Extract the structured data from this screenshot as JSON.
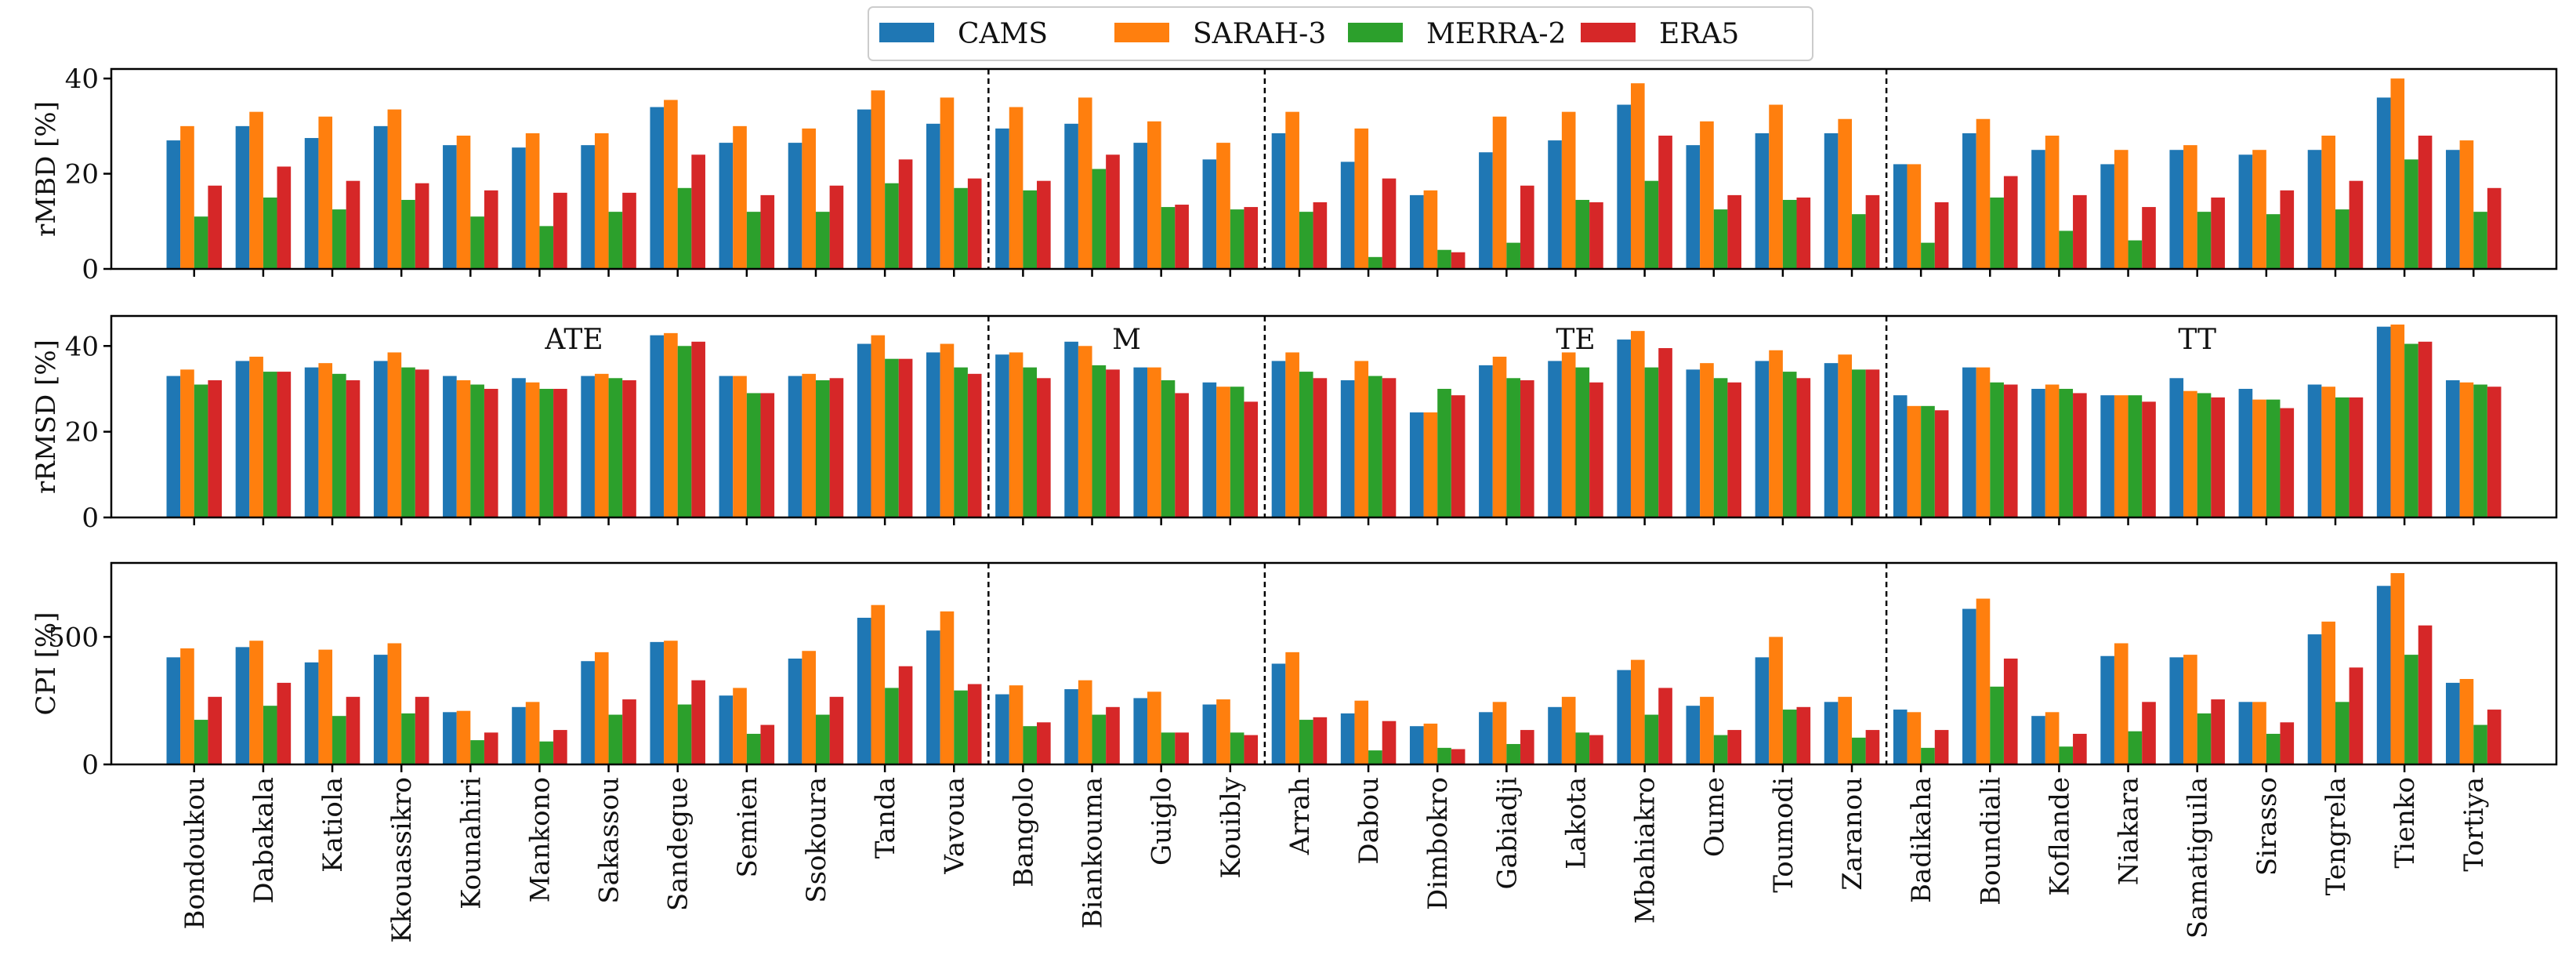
{
  "chart_data": {
    "type": "bar",
    "legend": {
      "position": "top-center",
      "entries": [
        "CAMS",
        "SARAH-3",
        "MERRA-2",
        "ERA5"
      ]
    },
    "colors": {
      "CAMS": "#1f77b4",
      "SARAH-3": "#ff7f0e",
      "MERRA-2": "#2ca02c",
      "ERA5": "#d62728"
    },
    "categories": [
      "Bondoukou",
      "Dabakala",
      "Katiola",
      "Kkouassikro",
      "Kounahiri",
      "Mankono",
      "Sakassou",
      "Sandegue",
      "Semien",
      "Ssokoura",
      "Tanda",
      "Vavoua",
      "Bangolo",
      "Biankouma",
      "Guiglo",
      "Kouibly",
      "Arrah",
      "Dabou",
      "Dimbokro",
      "Gabiadji",
      "Lakota",
      "Mbahiakro",
      "Oume",
      "Toumodi",
      "Zaranou",
      "Badikaha",
      "Boundiali",
      "Koflande",
      "Niakara",
      "Samatiguila",
      "Sirasso",
      "Tengrela",
      "Tienko",
      "Tortiya"
    ],
    "group_separators_after_index": [
      11,
      15,
      24
    ],
    "group_labels": [
      "ATE",
      "M",
      "TE",
      "TT"
    ],
    "panels": [
      {
        "ylabel": "rMBD [%]",
        "ylim": [
          0,
          42
        ],
        "yticks": [
          0,
          20,
          40
        ],
        "series": [
          {
            "name": "CAMS",
            "values": [
              27,
              30,
              27.5,
              30,
              26,
              25.5,
              26,
              34,
              26.5,
              26.5,
              33.5,
              30.5,
              29.5,
              30.5,
              26.5,
              23,
              28.5,
              22.5,
              15.5,
              24.5,
              27,
              34.5,
              26,
              28.5,
              28.5,
              22,
              28.5,
              25,
              22,
              25,
              24,
              25,
              36,
              25
            ]
          },
          {
            "name": "SARAH-3",
            "values": [
              30,
              33,
              32,
              33.5,
              28,
              28.5,
              28.5,
              35.5,
              30,
              29.5,
              37.5,
              36,
              34,
              36,
              31,
              26.5,
              33,
              29.5,
              16.5,
              32,
              33,
              39,
              31,
              34.5,
              31.5,
              22,
              31.5,
              28,
              25,
              26,
              25,
              28,
              40,
              27
            ]
          },
          {
            "name": "MERRA-2",
            "values": [
              11,
              15,
              12.5,
              14.5,
              11,
              9,
              12,
              17,
              12,
              12,
              18,
              17,
              16.5,
              21,
              13,
              12.5,
              12,
              2.5,
              4,
              5.5,
              14.5,
              18.5,
              12.5,
              14.5,
              11.5,
              5.5,
              15,
              8,
              6,
              12,
              11.5,
              12.5,
              23,
              12
            ]
          },
          {
            "name": "ERA5",
            "values": [
              17.5,
              21.5,
              18.5,
              18,
              16.5,
              16,
              16,
              24,
              15.5,
              17.5,
              23,
              19,
              18.5,
              24,
              13.5,
              13,
              14,
              19,
              3.5,
              17.5,
              14,
              28,
              15.5,
              15,
              15.5,
              14,
              19.5,
              15.5,
              13,
              15,
              16.5,
              18.5,
              28,
              17
            ]
          }
        ]
      },
      {
        "ylabel": "rRMSD [%]",
        "ylim": [
          0,
          47
        ],
        "yticks": [
          0,
          20,
          40
        ],
        "series": [
          {
            "name": "CAMS",
            "values": [
              33,
              36.5,
              35,
              36.5,
              33,
              32.5,
              33,
              42.5,
              33,
              33,
              40.5,
              38.5,
              38,
              41,
              35,
              31.5,
              36.5,
              32,
              24.5,
              35.5,
              36.5,
              41.5,
              34.5,
              36.5,
              36,
              28.5,
              35,
              30,
              28.5,
              32.5,
              30,
              31,
              44.5,
              32
            ]
          },
          {
            "name": "SARAH-3",
            "values": [
              34.5,
              37.5,
              36,
              38.5,
              32,
              31.5,
              33.5,
              43,
              33,
              33.5,
              42.5,
              40.5,
              38.5,
              40,
              35,
              30.5,
              38.5,
              36.5,
              24.5,
              37.5,
              38.5,
              43.5,
              36,
              39,
              38,
              26,
              35,
              31,
              28.5,
              29.5,
              27.5,
              30.5,
              45,
              31.5
            ]
          },
          {
            "name": "MERRA-2",
            "values": [
              31,
              34,
              33.5,
              35,
              31,
              30,
              32.5,
              40,
              29,
              32,
              37,
              35,
              35,
              35.5,
              32,
              30.5,
              34,
              33,
              30,
              32.5,
              35,
              35,
              32.5,
              34,
              34.5,
              26,
              31.5,
              30,
              28.5,
              29,
              27.5,
              28,
              40.5,
              31
            ]
          },
          {
            "name": "ERA5",
            "values": [
              32,
              34,
              32,
              34.5,
              30,
              30,
              32,
              41,
              29,
              32.5,
              37,
              33.5,
              32.5,
              34.5,
              29,
              27,
              32.5,
              32.5,
              28.5,
              32,
              31.5,
              39.5,
              31.5,
              32.5,
              34.5,
              25,
              31,
              29,
              27,
              28,
              25.5,
              28,
              41,
              30.5
            ]
          }
        ]
      },
      {
        "ylabel": "CPI [%]",
        "ylim": [
          0,
          790
        ],
        "yticks": [
          0,
          500
        ],
        "series": [
          {
            "name": "CAMS",
            "values": [
              420,
              460,
              400,
              430,
              205,
              225,
              405,
              480,
              270,
              415,
              575,
              525,
              275,
              295,
              260,
              235,
              395,
              200,
              150,
              205,
              225,
              370,
              230,
              420,
              245,
              215,
              610,
              190,
              425,
              420,
              245,
              510,
              700,
              320
            ]
          },
          {
            "name": "SARAH-3",
            "values": [
              455,
              485,
              450,
              475,
              210,
              245,
              440,
              485,
              300,
              445,
              625,
              600,
              310,
              330,
              285,
              255,
              440,
              250,
              160,
              245,
              265,
              410,
              265,
              500,
              265,
              205,
              650,
              205,
              475,
              430,
              245,
              560,
              750,
              335
            ]
          },
          {
            "name": "MERRA-2",
            "values": [
              175,
              230,
              190,
              200,
              95,
              90,
              195,
              235,
              120,
              195,
              300,
              290,
              150,
              195,
              125,
              125,
              175,
              55,
              65,
              80,
              125,
              195,
              115,
              215,
              105,
              65,
              305,
              70,
              130,
              200,
              120,
              245,
              430,
              155
            ]
          },
          {
            "name": "ERA5",
            "values": [
              265,
              320,
              265,
              265,
              125,
              135,
              255,
              330,
              155,
              265,
              385,
              315,
              165,
              225,
              125,
              115,
              185,
              170,
              60,
              135,
              115,
              300,
              135,
              225,
              135,
              135,
              415,
              120,
              245,
              255,
              165,
              380,
              545,
              215
            ]
          }
        ]
      }
    ]
  }
}
